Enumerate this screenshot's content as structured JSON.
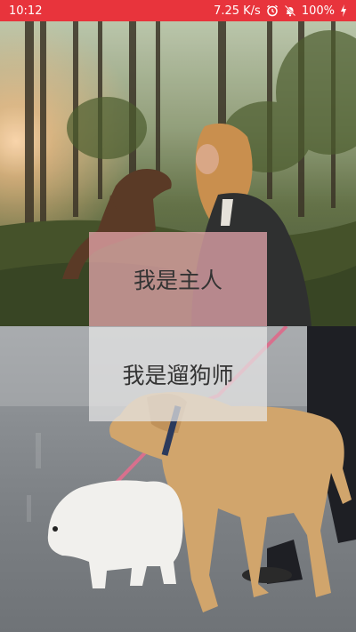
{
  "status_bar": {
    "time": "10:12",
    "network_speed": "7.25 K/s",
    "battery": "100%",
    "background_color": "#e8343c",
    "icons": [
      "alarm-icon",
      "notifications-off-icon",
      "battery-charging-icon"
    ]
  },
  "roles": {
    "owner_label": "我是主人",
    "walker_label": "我是遛狗师",
    "owner_card_color": "#ecaab2",
    "walker_card_color": "#e6e6e6"
  }
}
